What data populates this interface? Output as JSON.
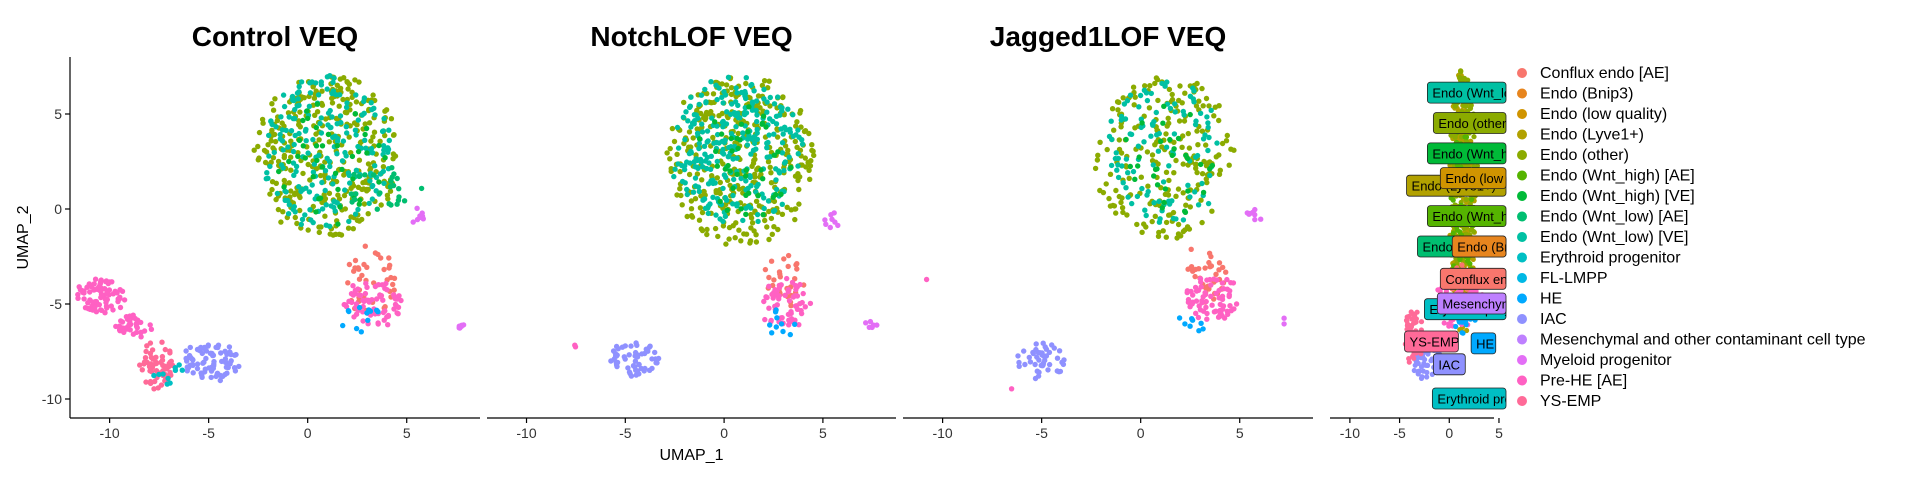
{
  "colors": {
    "Conflux endo [AE]": "#F8766D",
    "Endo (Bnip3)": "#E7851E",
    "Endo (low quality)": "#D09400",
    "Endo (Lyve1+)": "#B2A100",
    "Endo (other)": "#8BAB00",
    "Endo (Wnt_high) [AE]": "#55B400",
    "Endo (Wnt_high) [VE]": "#00BA38",
    "Endo (Wnt_low) [AE]": "#00BE70",
    "Endo (Wnt_low) [VE]": "#00C0A3",
    "Erythroid progenitor": "#00BFC4",
    "FL-LMPP": "#00B8E5",
    "HE": "#00A9FF",
    "IAC": "#8F91FF",
    "Mesenchymal and other contaminant cell type": "#BE80FF",
    "Myeloid progenitor": "#E36EF6",
    "Pre-HE [AE]": "#FF61C3",
    "YS-EMP": "#FF6A98"
  },
  "chart_data": [
    {
      "type": "scatter",
      "title": "Control VEQ",
      "xlabel": "",
      "ylabel": "UMAP_2",
      "xlim": [
        -12,
        8.7
      ],
      "ylim": [
        -11,
        8
      ],
      "clusters": [
        {
          "name": "Endo (other)",
          "cx": 1.0,
          "cy": 2.8,
          "rx": 3.6,
          "ry": 4.3,
          "n": 330
        },
        {
          "name": "Endo (Wnt_low) [VE]",
          "cx": 0.9,
          "cy": 3.0,
          "rx": 3.3,
          "ry": 4.0,
          "n": 210
        },
        {
          "name": "Endo (Wnt_high) [VE]",
          "cx": 1.2,
          "cy": 2.5,
          "rx": 2.8,
          "ry": 3.5,
          "n": 40
        },
        {
          "name": "Endo (Wnt_low) [AE]",
          "cx": 3.8,
          "cy": 1.0,
          "rx": 2.0,
          "ry": 1.2,
          "n": 25
        },
        {
          "name": "Conflux endo [AE]",
          "cx": 3.2,
          "cy": -3.8,
          "rx": 1.2,
          "ry": 1.8,
          "n": 40
        },
        {
          "name": "Pre-HE [AE]",
          "cx": 3.3,
          "cy": -5.0,
          "rx": 1.4,
          "ry": 1.2,
          "n": 70
        },
        {
          "name": "HE",
          "cx": 2.8,
          "cy": -5.8,
          "rx": 1.0,
          "ry": 0.8,
          "n": 12
        },
        {
          "name": "Myeloid progenitor",
          "cx": 5.6,
          "cy": -0.3,
          "rx": 0.4,
          "ry": 0.4,
          "n": 8
        },
        {
          "name": "Myeloid progenitor",
          "cx": 7.7,
          "cy": -6.2,
          "rx": 0.3,
          "ry": 0.2,
          "n": 6
        },
        {
          "name": "Pre-HE [AE]",
          "cx": -10.5,
          "cy": -4.6,
          "rx": 1.2,
          "ry": 0.9,
          "n": 80
        },
        {
          "name": "Pre-HE [AE]",
          "cx": -8.8,
          "cy": -6.1,
          "rx": 1.0,
          "ry": 0.6,
          "n": 40
        },
        {
          "name": "YS-EMP",
          "cx": -7.6,
          "cy": -8.2,
          "rx": 0.8,
          "ry": 1.3,
          "n": 60
        },
        {
          "name": "IAC",
          "cx": -4.9,
          "cy": -8.0,
          "rx": 1.5,
          "ry": 0.9,
          "n": 80
        },
        {
          "name": "Erythroid progenitor",
          "cx": -7.0,
          "cy": -8.6,
          "rx": 0.8,
          "ry": 0.6,
          "n": 10
        }
      ]
    },
    {
      "type": "scatter",
      "title": "NotchLOF VEQ",
      "xlabel": "UMAP_1",
      "ylabel": "",
      "xlim": [
        -12,
        8.7
      ],
      "ylim": [
        -11,
        8
      ],
      "clusters": [
        {
          "name": "Endo (other)",
          "cx": 0.8,
          "cy": 2.6,
          "rx": 3.7,
          "ry": 4.5,
          "n": 360
        },
        {
          "name": "Endo (Wnt_low) [VE]",
          "cx": 0.6,
          "cy": 3.0,
          "rx": 3.3,
          "ry": 4.0,
          "n": 280
        },
        {
          "name": "Endo (Wnt_high) [VE]",
          "cx": 1.0,
          "cy": 2.5,
          "rx": 2.5,
          "ry": 3.0,
          "n": 40
        },
        {
          "name": "Conflux endo [AE]",
          "cx": 3.1,
          "cy": -3.6,
          "rx": 1.0,
          "ry": 1.6,
          "n": 30
        },
        {
          "name": "Pre-HE [AE]",
          "cx": 3.1,
          "cy": -5.0,
          "rx": 1.3,
          "ry": 1.3,
          "n": 60
        },
        {
          "name": "HE",
          "cx": 2.7,
          "cy": -6.0,
          "rx": 0.9,
          "ry": 0.7,
          "n": 10
        },
        {
          "name": "Myeloid progenitor",
          "cx": 5.4,
          "cy": -0.6,
          "rx": 0.6,
          "ry": 0.4,
          "n": 8
        },
        {
          "name": "Myeloid progenitor",
          "cx": 7.4,
          "cy": -6.1,
          "rx": 0.4,
          "ry": 0.2,
          "n": 6
        },
        {
          "name": "IAC",
          "cx": -4.5,
          "cy": -7.9,
          "rx": 1.3,
          "ry": 0.9,
          "n": 55
        },
        {
          "name": "Pre-HE [AE]",
          "cx": -7.4,
          "cy": -7.2,
          "rx": 0.1,
          "ry": 0.2,
          "n": 2
        }
      ]
    },
    {
      "type": "scatter",
      "title": "Jagged1LOF VEQ",
      "xlabel": "",
      "ylabel": "",
      "xlim": [
        -12,
        8.7
      ],
      "ylim": [
        -11,
        8
      ],
      "clusters": [
        {
          "name": "Endo (other)",
          "cx": 1.2,
          "cy": 2.8,
          "rx": 3.5,
          "ry": 4.4,
          "n": 220
        },
        {
          "name": "Endo (Wnt_low) [VE]",
          "cx": 1.3,
          "cy": 3.0,
          "rx": 3.0,
          "ry": 3.8,
          "n": 110
        },
        {
          "name": "Endo (Wnt_high) [VE]",
          "cx": 1.5,
          "cy": 2.5,
          "rx": 2.5,
          "ry": 3.0,
          "n": 30
        },
        {
          "name": "Conflux endo [AE]",
          "cx": 3.3,
          "cy": -3.4,
          "rx": 1.1,
          "ry": 1.5,
          "n": 35
        },
        {
          "name": "Pre-HE [AE]",
          "cx": 3.5,
          "cy": -4.7,
          "rx": 1.4,
          "ry": 1.2,
          "n": 70
        },
        {
          "name": "HE",
          "cx": 2.8,
          "cy": -6.0,
          "rx": 0.9,
          "ry": 0.7,
          "n": 8
        },
        {
          "name": "Myeloid progenitor",
          "cx": 5.8,
          "cy": -0.3,
          "rx": 0.4,
          "ry": 0.4,
          "n": 8
        },
        {
          "name": "IAC",
          "cx": -5.0,
          "cy": -7.9,
          "rx": 1.2,
          "ry": 0.9,
          "n": 45
        },
        {
          "name": "Pre-HE [AE]",
          "cx": -6.5,
          "cy": -9.5,
          "rx": 0.1,
          "ry": 0.1,
          "n": 1
        },
        {
          "name": "Pre-HE [AE]",
          "cx": -10.8,
          "cy": -3.7,
          "rx": 0.1,
          "ry": 0.1,
          "n": 1
        },
        {
          "name": "Myeloid progenitor",
          "cx": 7.4,
          "cy": -5.8,
          "rx": 0.2,
          "ry": 0.4,
          "n": 2
        }
      ]
    },
    {
      "type": "scatter",
      "title": "",
      "xlim": [
        -12,
        4.5
      ],
      "ylim": [
        -11,
        8
      ],
      "clusters": [
        {
          "name": "Endo (Lyve1+)",
          "cx": 1.3,
          "cy": 0.5,
          "rx": 1.3,
          "ry": 7.0,
          "n": 250
        },
        {
          "name": "Endo (other)",
          "cx": 1.4,
          "cy": 2.0,
          "rx": 1.3,
          "ry": 5.5,
          "n": 200
        },
        {
          "name": "Endo (Wnt_high) [AE]",
          "cx": 1.3,
          "cy": 0.0,
          "rx": 1.2,
          "ry": 4.5,
          "n": 80
        },
        {
          "name": "Pre-HE [AE]",
          "cx": 0.8,
          "cy": -5.0,
          "rx": 2.8,
          "ry": 1.3,
          "n": 100
        },
        {
          "name": "IAC",
          "cx": -2.5,
          "cy": -7.8,
          "rx": 1.4,
          "ry": 1.2,
          "n": 70
        },
        {
          "name": "YS-EMP",
          "cx": -3.6,
          "cy": -6.8,
          "rx": 1.0,
          "ry": 1.6,
          "n": 50
        },
        {
          "name": "HE",
          "cx": 1.5,
          "cy": -6.0,
          "rx": 1.0,
          "ry": 0.8,
          "n": 20
        },
        {
          "name": "Conflux endo [AE]",
          "cx": 1.1,
          "cy": -3.8,
          "rx": 1.2,
          "ry": 0.8,
          "n": 30
        }
      ],
      "labels": [
        {
          "text": "Endo (Wnt_low) [VE]",
          "x": -2.2,
          "y": 6.1,
          "fill": "Endo (Wnt_low) [VE]"
        },
        {
          "text": "Endo (other)",
          "x": -1.6,
          "y": 4.5,
          "fill": "Endo (other)"
        },
        {
          "text": "Endo (Wnt_high) [VE]",
          "x": -2.2,
          "y": 2.9,
          "fill": "Endo (Wnt_high) [VE]"
        },
        {
          "text": "Endo (Lyve1+)",
          "x": -4.3,
          "y": 1.2,
          "fill": "Endo (Lyve1+)"
        },
        {
          "text": "Endo (low quality)",
          "x": -0.9,
          "y": 1.6,
          "fill": "Endo (low quality)"
        },
        {
          "text": "Endo (Wnt_high) [AE]",
          "x": -2.2,
          "y": -0.4,
          "fill": "Endo (Wnt_high) [AE]"
        },
        {
          "text": "Endo (Wnt_low) [AE]",
          "x": -3.2,
          "y": -2.0,
          "fill": "Endo (Wnt_low) [AE]"
        },
        {
          "text": "Endo (Bnip3)",
          "x": 0.3,
          "y": -2.0,
          "fill": "Endo (Bnip3)"
        },
        {
          "text": "Conflux endo [AE]",
          "x": -0.9,
          "y": -3.7,
          "fill": "Conflux endo [AE]"
        },
        {
          "text": "Erythroid progenitor",
          "x": -2.5,
          "y": -5.3,
          "fill": "Erythroid progenitor"
        },
        {
          "text": "Mesenchymal and other contaminant cell type",
          "x": -1.2,
          "y": -5.0,
          "fill": "Mesenchymal and other contaminant cell type"
        },
        {
          "text": "YS-EMP",
          "x": -4.5,
          "y": -7.0,
          "fill": "YS-EMP"
        },
        {
          "text": "HE",
          "x": 2.2,
          "y": -7.1,
          "fill": "HE"
        },
        {
          "text": "IAC",
          "x": -1.6,
          "y": -8.2,
          "fill": "IAC"
        },
        {
          "text": "Erythroid progenitor",
          "x": -1.7,
          "y": -10.0,
          "fill": "Erythroid progenitor"
        }
      ]
    }
  ],
  "legend": [
    "Conflux endo [AE]",
    "Endo (Bnip3)",
    "Endo (low quality)",
    "Endo (Lyve1+)",
    "Endo (other)",
    "Endo (Wnt_high) [AE]",
    "Endo (Wnt_high) [VE]",
    "Endo (Wnt_low) [AE]",
    "Endo (Wnt_low) [VE]",
    "Erythroid progenitor",
    "FL-LMPP",
    "HE",
    "IAC",
    "Mesenchymal and other contaminant cell type",
    "Myeloid progenitor",
    "Pre-HE [AE]",
    "YS-EMP"
  ],
  "axes": {
    "x_ticks": [
      -10,
      -5,
      0,
      5
    ],
    "y_ticks": [
      5,
      0,
      -5,
      -10
    ],
    "small_x_ticks": [
      -10,
      -5,
      0,
      5
    ]
  }
}
